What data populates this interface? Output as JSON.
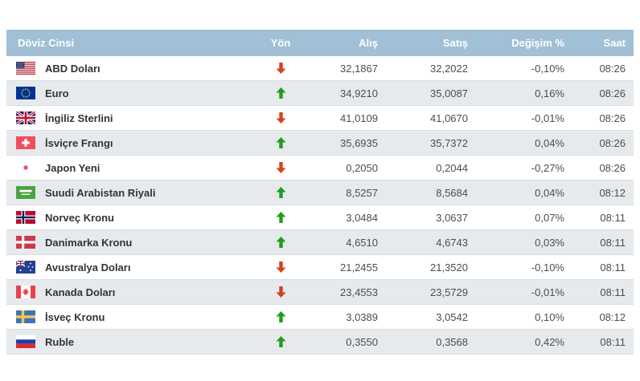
{
  "table": {
    "headers": {
      "currency": "Döviz Cinsi",
      "direction": "Yön",
      "buy": "Alış",
      "sell": "Satış",
      "change": "Değişim %",
      "time": "Saat"
    },
    "rows": [
      {
        "name": "ABD Doları",
        "flag": "us",
        "direction": "down",
        "buy": "32,1867",
        "sell": "32,2022",
        "change": "-0,10%",
        "time": "08:26"
      },
      {
        "name": "Euro",
        "flag": "eu",
        "direction": "up",
        "buy": "34,9210",
        "sell": "35,0087",
        "change": "0,16%",
        "time": "08:26"
      },
      {
        "name": "İngiliz Sterlini",
        "flag": "gb",
        "direction": "down",
        "buy": "41,0109",
        "sell": "41,0670",
        "change": "-0,01%",
        "time": "08:26"
      },
      {
        "name": "İsviçre Frangı",
        "flag": "ch",
        "direction": "up",
        "buy": "35,6935",
        "sell": "35,7372",
        "change": "0,04%",
        "time": "08:26"
      },
      {
        "name": "Japon Yeni",
        "flag": "jp",
        "direction": "down",
        "buy": "0,2050",
        "sell": "0,2044",
        "change": "-0,27%",
        "time": "08:26"
      },
      {
        "name": "Suudi Arabistan Riyali",
        "flag": "sa",
        "direction": "up",
        "buy": "8,5257",
        "sell": "8,5684",
        "change": "0,04%",
        "time": "08:12"
      },
      {
        "name": "Norveç Kronu",
        "flag": "no",
        "direction": "up",
        "buy": "3,0484",
        "sell": "3,0637",
        "change": "0,07%",
        "time": "08:11"
      },
      {
        "name": "Danimarka Kronu",
        "flag": "dk",
        "direction": "up",
        "buy": "4,6510",
        "sell": "4,6743",
        "change": "0,03%",
        "time": "08:11"
      },
      {
        "name": "Avustralya Doları",
        "flag": "au",
        "direction": "down",
        "buy": "21,2455",
        "sell": "21,3520",
        "change": "-0,10%",
        "time": "08:11"
      },
      {
        "name": "Kanada Doları",
        "flag": "ca",
        "direction": "down",
        "buy": "23,4553",
        "sell": "23,5729",
        "change": "-0,01%",
        "time": "08:11"
      },
      {
        "name": "İsveç Kronu",
        "flag": "se",
        "direction": "up",
        "buy": "3,0389",
        "sell": "3,0542",
        "change": "0,10%",
        "time": "08:12"
      },
      {
        "name": "Ruble",
        "flag": "ru",
        "direction": "up",
        "buy": "0,3550",
        "sell": "0,3568",
        "change": "0,42%",
        "time": "08:11"
      }
    ]
  },
  "colors": {
    "header_bg": "#a1c0d6",
    "header_text": "#ffffff",
    "stripe_bg": "#e6eaed",
    "row_border": "#d9dee1",
    "up_arrow": "#1f9c1f",
    "down_arrow": "#d6411f",
    "name_text": "#333333",
    "value_text": "#4d4d4d"
  }
}
